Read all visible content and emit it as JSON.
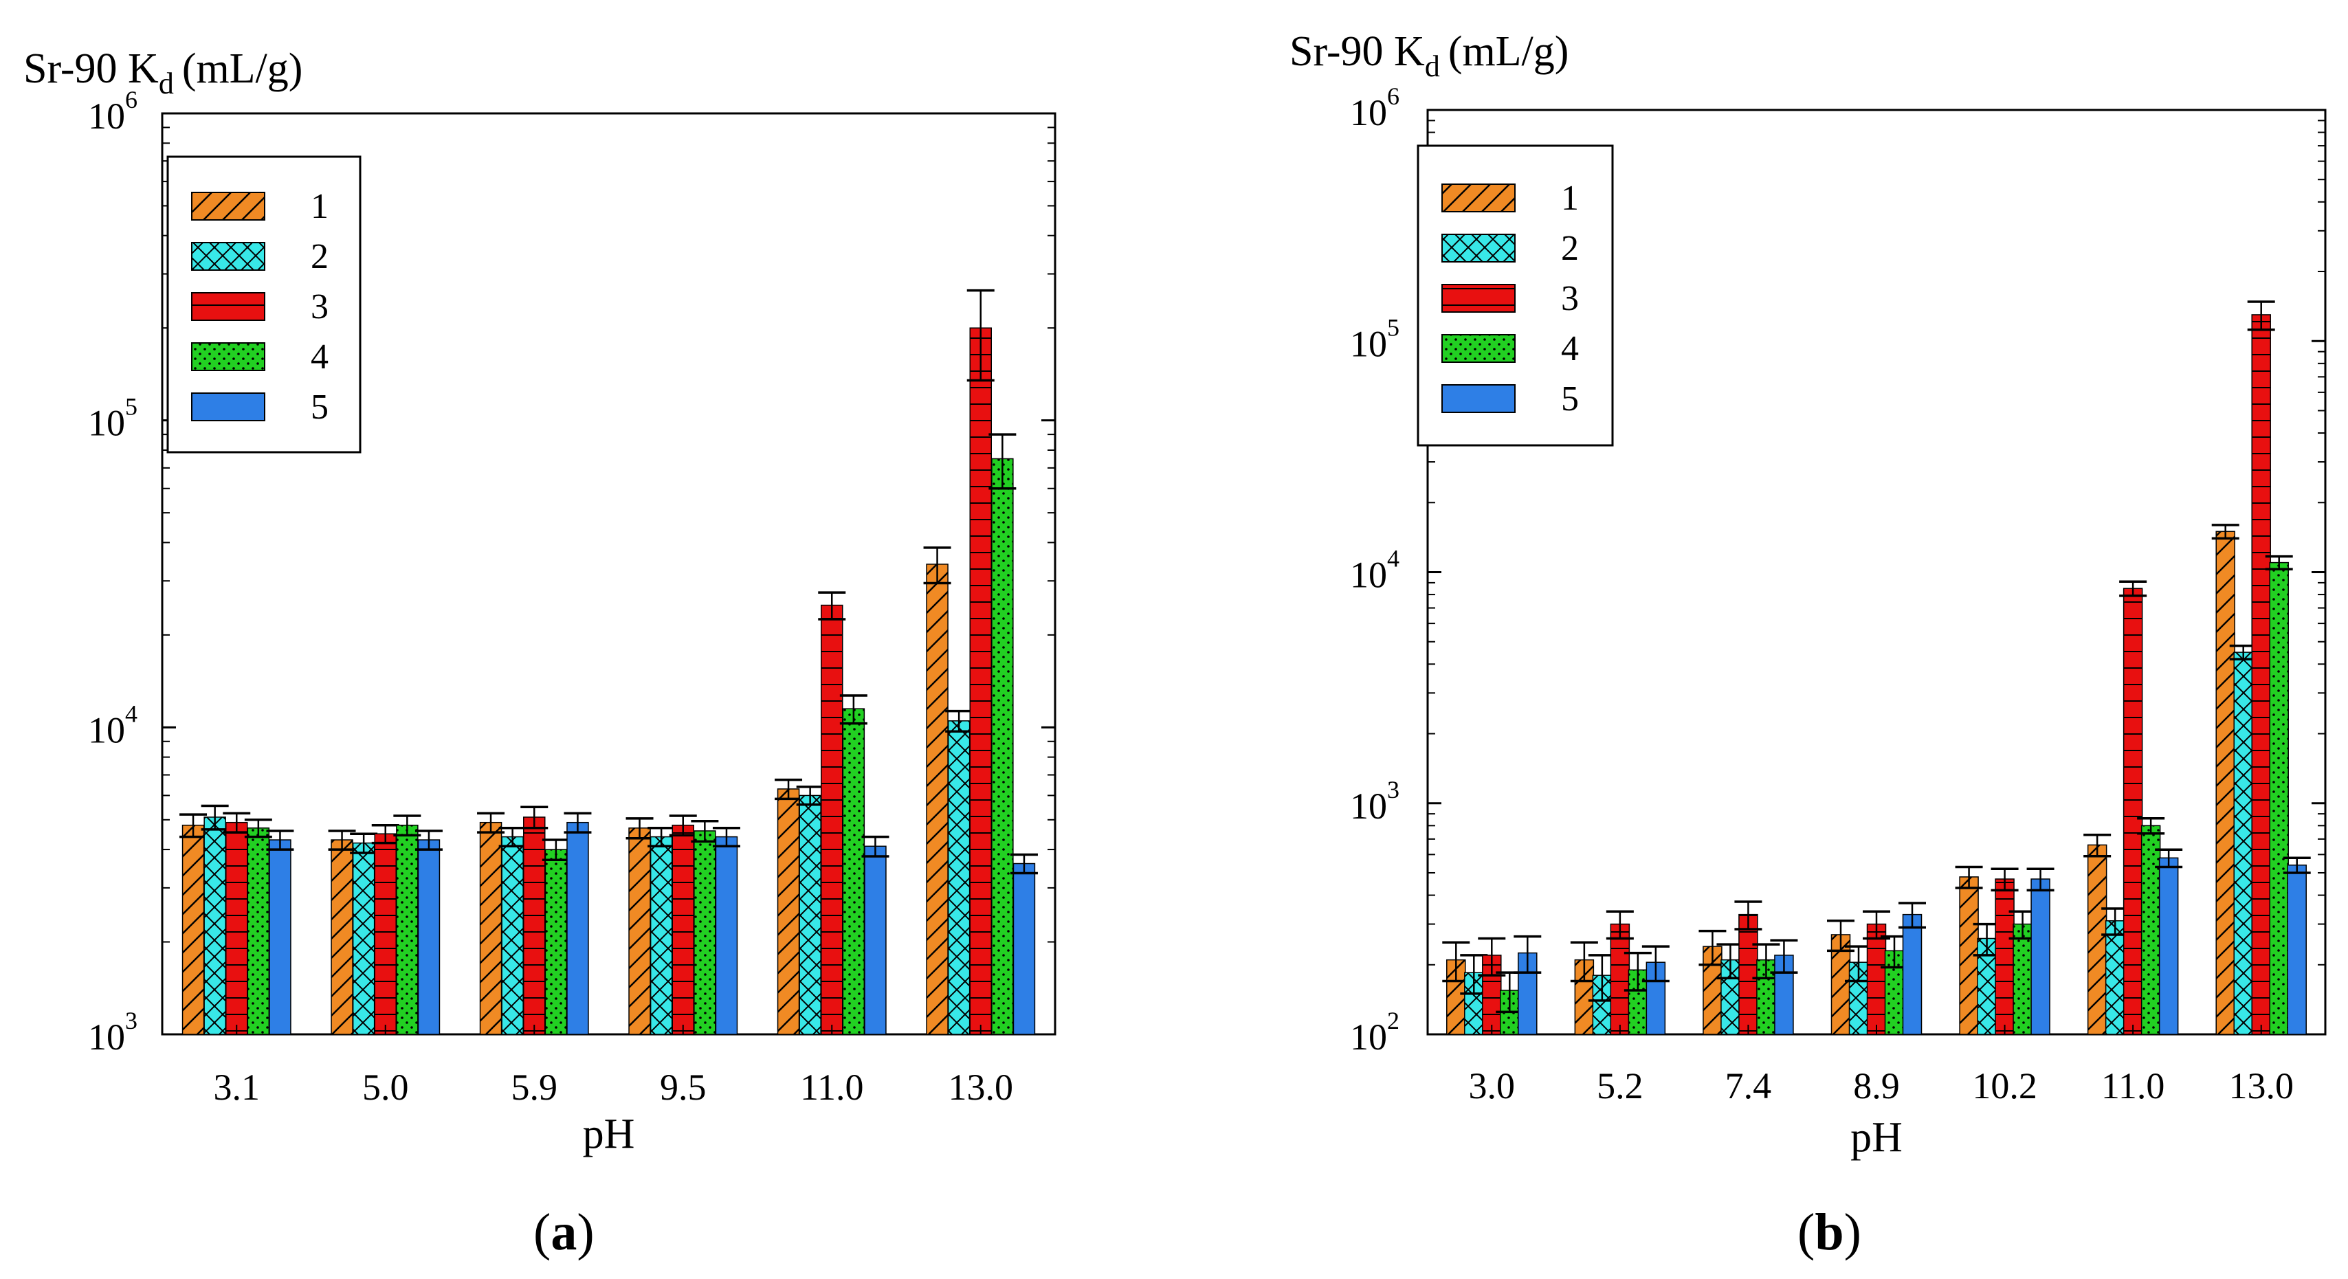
{
  "chart_data": [
    {
      "type": "bar",
      "panel_label": "a",
      "ylabel": "Sr-90 K",
      "ylabel_sub": "d",
      "ylabel_unit": "(mL/g)",
      "xlabel": "pH",
      "yscale": "log",
      "ylim": [
        1000,
        1000000
      ],
      "yticks": [
        {
          "base": "10",
          "exp": "3",
          "value": 1000
        },
        {
          "base": "10",
          "exp": "4",
          "value": 10000
        },
        {
          "base": "10",
          "exp": "5",
          "value": 100000
        },
        {
          "base": "10",
          "exp": "6",
          "value": 1000000
        }
      ],
      "categories": [
        "3.1",
        "5.0",
        "5.9",
        "9.5",
        "11.0",
        "13.0"
      ],
      "legend_position": "top-left",
      "series": [
        {
          "name": "1",
          "values": [
            4800,
            4300,
            4900,
            4700,
            6300,
            34000
          ],
          "errors": [
            400,
            300,
            350,
            350,
            450,
            4500
          ]
        },
        {
          "name": "2",
          "values": [
            5100,
            4200,
            4400,
            4400,
            6000,
            10500
          ],
          "errors": [
            450,
            300,
            300,
            300,
            400,
            800
          ]
        },
        {
          "name": "3",
          "values": [
            4900,
            4500,
            5100,
            4800,
            25000,
            200000
          ],
          "errors": [
            350,
            300,
            400,
            350,
            2500,
            65000
          ]
        },
        {
          "name": "4",
          "values": [
            4700,
            4800,
            4000,
            4600,
            11500,
            75000
          ],
          "errors": [
            300,
            350,
            300,
            350,
            1200,
            15000
          ]
        },
        {
          "name": "5",
          "values": [
            4300,
            4300,
            4900,
            4400,
            4100,
            3600
          ],
          "errors": [
            300,
            300,
            350,
            300,
            300,
            250
          ]
        }
      ]
    },
    {
      "type": "bar",
      "panel_label": "b",
      "ylabel": "Sr-90 K",
      "ylabel_sub": "d",
      "ylabel_unit": "(mL/g)",
      "xlabel": "pH",
      "yscale": "log",
      "ylim": [
        100,
        1000000
      ],
      "yticks": [
        {
          "base": "10",
          "exp": "2",
          "value": 100
        },
        {
          "base": "10",
          "exp": "3",
          "value": 1000
        },
        {
          "base": "10",
          "exp": "4",
          "value": 10000
        },
        {
          "base": "10",
          "exp": "5",
          "value": 100000
        },
        {
          "base": "10",
          "exp": "6",
          "value": 1000000
        }
      ],
      "categories": [
        "3.0",
        "5.2",
        "7.4",
        "8.9",
        "10.2",
        "11.0",
        "13.0"
      ],
      "legend_position": "top-left",
      "series": [
        {
          "name": "1",
          "values": [
            210,
            210,
            240,
            270,
            480,
            660,
            15000
          ],
          "errors": [
            40,
            40,
            40,
            40,
            50,
            70,
            1000
          ]
        },
        {
          "name": "2",
          "values": [
            185,
            180,
            210,
            205,
            260,
            310,
            4500
          ],
          "errors": [
            35,
            40,
            35,
            35,
            40,
            40,
            300
          ]
        },
        {
          "name": "3",
          "values": [
            220,
            300,
            330,
            300,
            470,
            8500,
            130000
          ],
          "errors": [
            40,
            40,
            45,
            40,
            50,
            600,
            18000
          ]
        },
        {
          "name": "4",
          "values": [
            155,
            190,
            210,
            230,
            300,
            800,
            11000
          ],
          "errors": [
            30,
            35,
            35,
            35,
            40,
            60,
            700
          ]
        },
        {
          "name": "5",
          "values": [
            225,
            205,
            220,
            330,
            470,
            580,
            540
          ],
          "errors": [
            40,
            35,
            35,
            40,
            50,
            50,
            40
          ]
        }
      ]
    }
  ],
  "colors": {
    "s1": "#F08A24",
    "s2": "#38E8E8",
    "s3": "#E81010",
    "s4": "#22D022",
    "s5": "#2E7FE6"
  }
}
